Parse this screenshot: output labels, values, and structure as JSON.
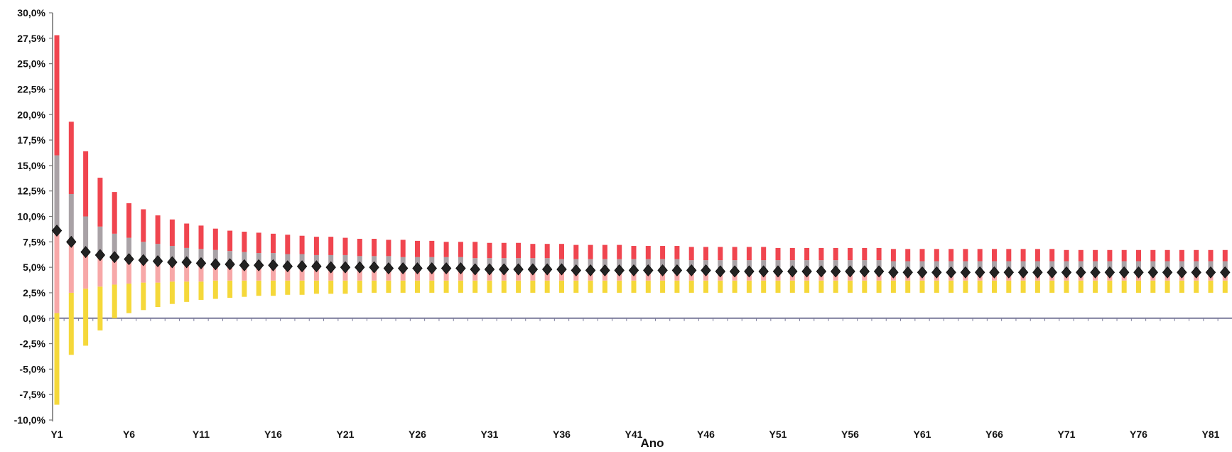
{
  "chart_data": {
    "type": "box-range",
    "title": "",
    "xlabel": "Ano",
    "ylabel": "",
    "ylim": [
      -10,
      30
    ],
    "ytick_values": [
      -10,
      -7.5,
      -5,
      -2.5,
      0,
      2.5,
      5,
      7.5,
      10,
      12.5,
      15,
      17.5,
      20,
      22.5,
      25,
      27.5,
      30
    ],
    "ytick_labels": [
      "-10,0%",
      "-7,5%",
      "-5,0%",
      "-2,5%",
      "0,0%",
      "2,5%",
      "5,0%",
      "7,5%",
      "10,0%",
      "12,5%",
      "15,0%",
      "17,5%",
      "20,0%",
      "22,5%",
      "25,0%",
      "27,5%",
      "30,0%"
    ],
    "xtick_labels": [
      "Y1",
      "Y6",
      "Y11",
      "Y16",
      "Y21",
      "Y26",
      "Y31",
      "Y36",
      "Y41",
      "Y46",
      "Y51",
      "Y56",
      "Y61",
      "Y66",
      "Y71",
      "Y76",
      "Y81"
    ],
    "xtick_every": 5,
    "grid": false,
    "n_years": 85,
    "series": [
      {
        "key": "lower",
        "color": "#f5d83a",
        "values": [
          -8.5,
          -3.6,
          -2.7,
          -1.2,
          0.0,
          0.5,
          0.8,
          1.1,
          1.4,
          1.6,
          1.8,
          1.9,
          2.0,
          2.1,
          2.2,
          2.2,
          2.3,
          2.3,
          2.4,
          2.4,
          2.4,
          2.5,
          2.5,
          2.5,
          2.5,
          2.5,
          2.5,
          2.5,
          2.5,
          2.5,
          2.5,
          2.5,
          2.5,
          2.5,
          2.5,
          2.5,
          2.5,
          2.5,
          2.5,
          2.5,
          2.5,
          2.5,
          2.5,
          2.5,
          2.5,
          2.5,
          2.5,
          2.5,
          2.5,
          2.5,
          2.5,
          2.5,
          2.5,
          2.5,
          2.5,
          2.5,
          2.5,
          2.5,
          2.5,
          2.5,
          2.5,
          2.5,
          2.5,
          2.5,
          2.5,
          2.5,
          2.5,
          2.5,
          2.5,
          2.5,
          2.5,
          2.5,
          2.5,
          2.5,
          2.5,
          2.5,
          2.5,
          2.5,
          2.5,
          2.5,
          2.5,
          2.5,
          2.5,
          2.5,
          2.5
        ]
      },
      {
        "key": "q1",
        "color": "#f7a8a8",
        "values": [
          0.5,
          2.5,
          2.9,
          3.1,
          3.3,
          3.4,
          3.5,
          3.5,
          3.6,
          3.6,
          3.6,
          3.7,
          3.7,
          3.7,
          3.7,
          3.7,
          3.7,
          3.7,
          3.7,
          3.7,
          3.7,
          3.7,
          3.7,
          3.7,
          3.7,
          3.7,
          3.7,
          3.7,
          3.7,
          3.7,
          3.7,
          3.7,
          3.7,
          3.7,
          3.7,
          3.7,
          3.7,
          3.7,
          3.7,
          3.7,
          3.7,
          3.7,
          3.7,
          3.7,
          3.7,
          3.7,
          3.7,
          3.7,
          3.7,
          3.7,
          3.7,
          3.7,
          3.7,
          3.7,
          3.7,
          3.7,
          3.7,
          3.7,
          3.7,
          3.7,
          3.7,
          3.7,
          3.7,
          3.7,
          3.7,
          3.7,
          3.7,
          3.7,
          3.7,
          3.7,
          3.7,
          3.7,
          3.7,
          3.7,
          3.7,
          3.7,
          3.7,
          3.7,
          3.7,
          3.7,
          3.7,
          3.7,
          3.7,
          3.7,
          3.7
        ]
      },
      {
        "key": "median",
        "color": "#222222",
        "values": [
          8.6,
          7.5,
          6.5,
          6.2,
          6.0,
          5.8,
          5.7,
          5.6,
          5.5,
          5.5,
          5.4,
          5.3,
          5.3,
          5.2,
          5.2,
          5.2,
          5.1,
          5.1,
          5.1,
          5.0,
          5.0,
          5.0,
          5.0,
          4.9,
          4.9,
          4.9,
          4.9,
          4.9,
          4.9,
          4.8,
          4.8,
          4.8,
          4.8,
          4.8,
          4.8,
          4.8,
          4.7,
          4.7,
          4.7,
          4.7,
          4.7,
          4.7,
          4.7,
          4.7,
          4.7,
          4.7,
          4.6,
          4.6,
          4.6,
          4.6,
          4.6,
          4.6,
          4.6,
          4.6,
          4.6,
          4.6,
          4.6,
          4.6,
          4.5,
          4.5,
          4.5,
          4.5,
          4.5,
          4.5,
          4.5,
          4.5,
          4.5,
          4.5,
          4.5,
          4.5,
          4.5,
          4.5,
          4.5,
          4.5,
          4.5,
          4.5,
          4.5,
          4.5,
          4.5,
          4.5,
          4.5,
          4.5,
          4.5,
          4.5,
          4.4
        ]
      },
      {
        "key": "q3",
        "color": "#a9a2a6",
        "values": [
          16.0,
          12.2,
          10.0,
          9.0,
          8.3,
          7.9,
          7.5,
          7.3,
          7.1,
          6.9,
          6.8,
          6.7,
          6.6,
          6.5,
          6.4,
          6.4,
          6.3,
          6.3,
          6.2,
          6.2,
          6.2,
          6.1,
          6.1,
          6.1,
          6.0,
          6.0,
          6.0,
          6.0,
          6.0,
          5.9,
          5.9,
          5.9,
          5.9,
          5.9,
          5.9,
          5.8,
          5.8,
          5.8,
          5.8,
          5.8,
          5.8,
          5.8,
          5.8,
          5.8,
          5.7,
          5.7,
          5.7,
          5.7,
          5.7,
          5.7,
          5.7,
          5.7,
          5.7,
          5.7,
          5.7,
          5.7,
          5.7,
          5.7,
          5.6,
          5.6,
          5.6,
          5.6,
          5.6,
          5.6,
          5.6,
          5.6,
          5.6,
          5.6,
          5.6,
          5.6,
          5.6,
          5.6,
          5.6,
          5.6,
          5.6,
          5.6,
          5.6,
          5.6,
          5.6,
          5.6,
          5.6,
          5.6,
          5.6,
          5.6,
          5.6
        ]
      },
      {
        "key": "upper",
        "color": "#f0454f",
        "values": [
          27.8,
          19.3,
          16.4,
          13.8,
          12.4,
          11.3,
          10.7,
          10.1,
          9.7,
          9.3,
          9.1,
          8.8,
          8.6,
          8.5,
          8.4,
          8.3,
          8.2,
          8.1,
          8.0,
          8.0,
          7.9,
          7.8,
          7.8,
          7.7,
          7.7,
          7.6,
          7.6,
          7.5,
          7.5,
          7.5,
          7.4,
          7.4,
          7.4,
          7.3,
          7.3,
          7.3,
          7.2,
          7.2,
          7.2,
          7.2,
          7.1,
          7.1,
          7.1,
          7.1,
          7.0,
          7.0,
          7.0,
          7.0,
          7.0,
          7.0,
          6.9,
          6.9,
          6.9,
          6.9,
          6.9,
          6.9,
          6.9,
          6.9,
          6.8,
          6.8,
          6.8,
          6.8,
          6.8,
          6.8,
          6.8,
          6.8,
          6.8,
          6.8,
          6.8,
          6.8,
          6.7,
          6.7,
          6.7,
          6.7,
          6.7,
          6.7,
          6.7,
          6.7,
          6.7,
          6.7,
          6.7,
          6.7,
          6.7,
          6.7,
          6.7
        ]
      }
    ]
  }
}
